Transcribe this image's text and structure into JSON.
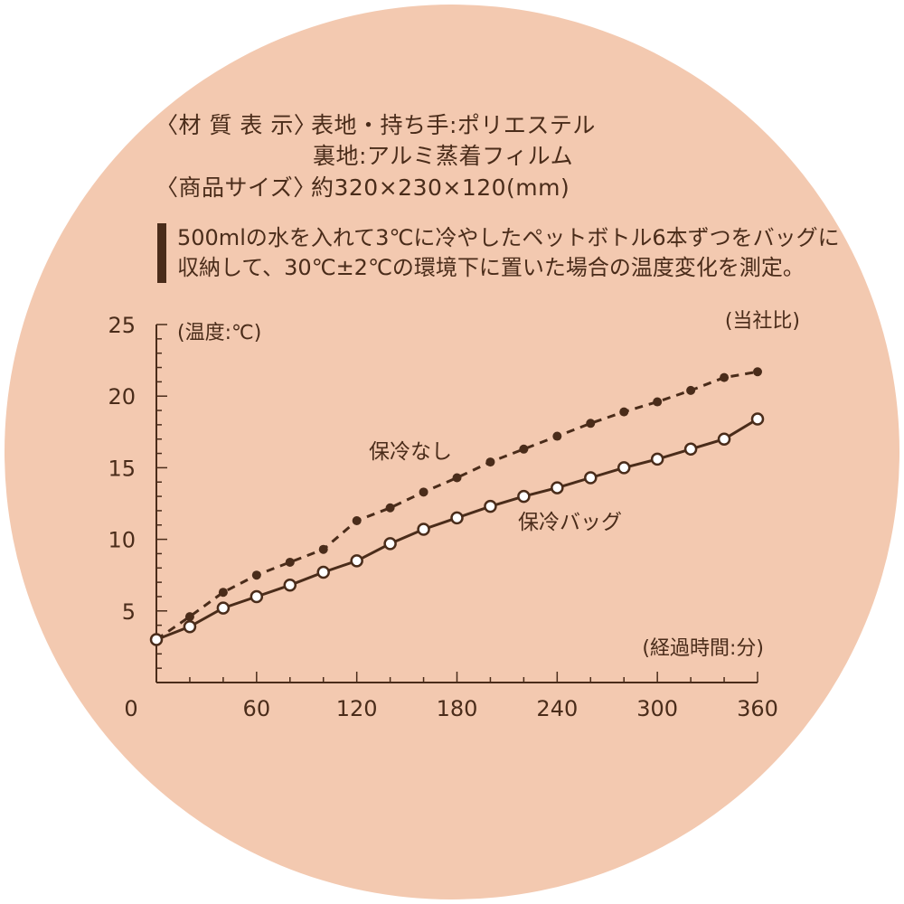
{
  "specs": {
    "material_label": "〈材 質 表 示〉",
    "material_outer": "表地・持ち手:ポリエステル",
    "material_inner": "裏地:アルミ蒸着フィルム",
    "size_label": "〈商品サイズ〉",
    "size_value": "約320×230×120(mm)"
  },
  "description": "500mlの水を入れて3℃に冷やしたペットボトル6本ずつをバッグに収納して、30℃±2℃の環境下に置いた場合の温度変化を測定。",
  "chart_data": {
    "type": "line",
    "ylabel": "(温度:℃)",
    "xlabel": "(経過時間:分)",
    "note": "(当社比)",
    "xlim": [
      0,
      360
    ],
    "ylim": [
      0,
      25
    ],
    "x_ticks": [
      0,
      60,
      120,
      180,
      240,
      300,
      360
    ],
    "y_ticks": [
      5,
      10,
      15,
      20,
      25
    ],
    "grid": false,
    "x": [
      0,
      20,
      40,
      60,
      80,
      100,
      120,
      140,
      160,
      180,
      200,
      220,
      240,
      260,
      280,
      300,
      320,
      340,
      360
    ],
    "series": [
      {
        "name": "保冷なし",
        "style": "dashed",
        "marker": "filled",
        "values": [
          3.0,
          4.6,
          6.3,
          7.5,
          8.4,
          9.3,
          11.3,
          12.2,
          13.3,
          14.3,
          15.4,
          16.3,
          17.2,
          18.1,
          18.9,
          19.6,
          20.4,
          21.3,
          21.7
        ]
      },
      {
        "name": "保冷バッグ",
        "style": "solid",
        "marker": "open",
        "values": [
          3.0,
          3.9,
          5.2,
          6.0,
          6.8,
          7.7,
          8.5,
          9.7,
          10.7,
          11.5,
          12.3,
          13.0,
          13.6,
          14.3,
          15.0,
          15.6,
          16.3,
          17.0,
          18.4
        ]
      }
    ],
    "series_colors": [
      "#4a2c1a",
      "#4a2c1a"
    ],
    "y_tick_labels": [
      "5",
      "10",
      "15",
      "20",
      "25"
    ],
    "x_tick_labels": [
      "0",
      "60",
      "120",
      "180",
      "240",
      "300",
      "360"
    ]
  }
}
